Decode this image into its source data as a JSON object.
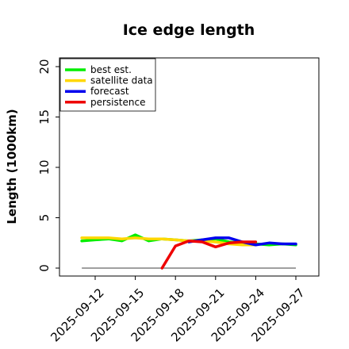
{
  "chart_data": {
    "type": "line",
    "title": "Ice edge length",
    "ylabel": "Length (1000km)",
    "xlabel": "",
    "ylim": [
      0,
      20.5
    ],
    "xlim": [
      "2025-09-10",
      "2025-09-27"
    ],
    "yticks": [
      0,
      5,
      10,
      15,
      20
    ],
    "xticks": [
      "2025-09-12",
      "2025-09-15",
      "2025-09-18",
      "2025-09-21",
      "2025-09-24",
      "2025-09-27"
    ],
    "highlight_tick": "2025-09-18",
    "highlight_color": "#228b22",
    "grid": false,
    "legend_position": "top-left",
    "baseline": {
      "value": 0,
      "from": "2025-09-11",
      "to": "2025-09-27",
      "color": "#808080"
    },
    "series": [
      {
        "name": "best est.",
        "color": "#00ee00",
        "x": [
          "2025-09-11",
          "2025-09-12",
          "2025-09-13",
          "2025-09-14",
          "2025-09-15",
          "2025-09-16",
          "2025-09-17",
          "2025-09-18",
          "2025-09-19",
          "2025-09-20",
          "2025-09-21",
          "2025-09-22",
          "2025-09-23",
          "2025-09-24",
          "2025-09-25",
          "2025-09-26",
          "2025-09-27"
        ],
        "values": [
          2.7,
          2.8,
          2.9,
          2.7,
          3.3,
          2.7,
          2.9,
          2.8,
          2.7,
          2.8,
          2.9,
          2.6,
          2.5,
          2.4,
          2.3,
          2.4,
          2.3
        ]
      },
      {
        "name": "satellite data",
        "color": "#ffd700",
        "x": [
          "2025-09-11",
          "2025-09-12",
          "2025-09-13",
          "2025-09-14",
          "2025-09-15",
          "2025-09-16",
          "2025-09-17",
          "2025-09-18",
          "2025-09-19",
          "2025-09-20",
          "2025-09-21",
          "2025-09-22",
          "2025-09-23",
          "2025-09-24"
        ],
        "values": [
          3.0,
          3.0,
          3.0,
          2.9,
          3.0,
          2.9,
          2.9,
          2.8,
          2.7,
          2.7,
          2.6,
          2.4,
          2.3,
          2.3
        ]
      },
      {
        "name": "forecast",
        "color": "#0000ee",
        "x": [
          "2025-09-19",
          "2025-09-20",
          "2025-09-21",
          "2025-09-22",
          "2025-09-23",
          "2025-09-24",
          "2025-09-25",
          "2025-09-26",
          "2025-09-27"
        ],
        "values": [
          2.6,
          2.8,
          3.0,
          3.0,
          2.6,
          2.3,
          2.5,
          2.4,
          2.4
        ]
      },
      {
        "name": "persistence",
        "color": "#ee0000",
        "x": [
          "2025-09-17",
          "2025-09-18",
          "2025-09-19",
          "2025-09-20",
          "2025-09-21",
          "2025-09-22",
          "2025-09-23",
          "2025-09-24"
        ],
        "values": [
          0.0,
          2.2,
          2.7,
          2.6,
          2.1,
          2.5,
          2.6,
          2.6
        ]
      }
    ]
  }
}
